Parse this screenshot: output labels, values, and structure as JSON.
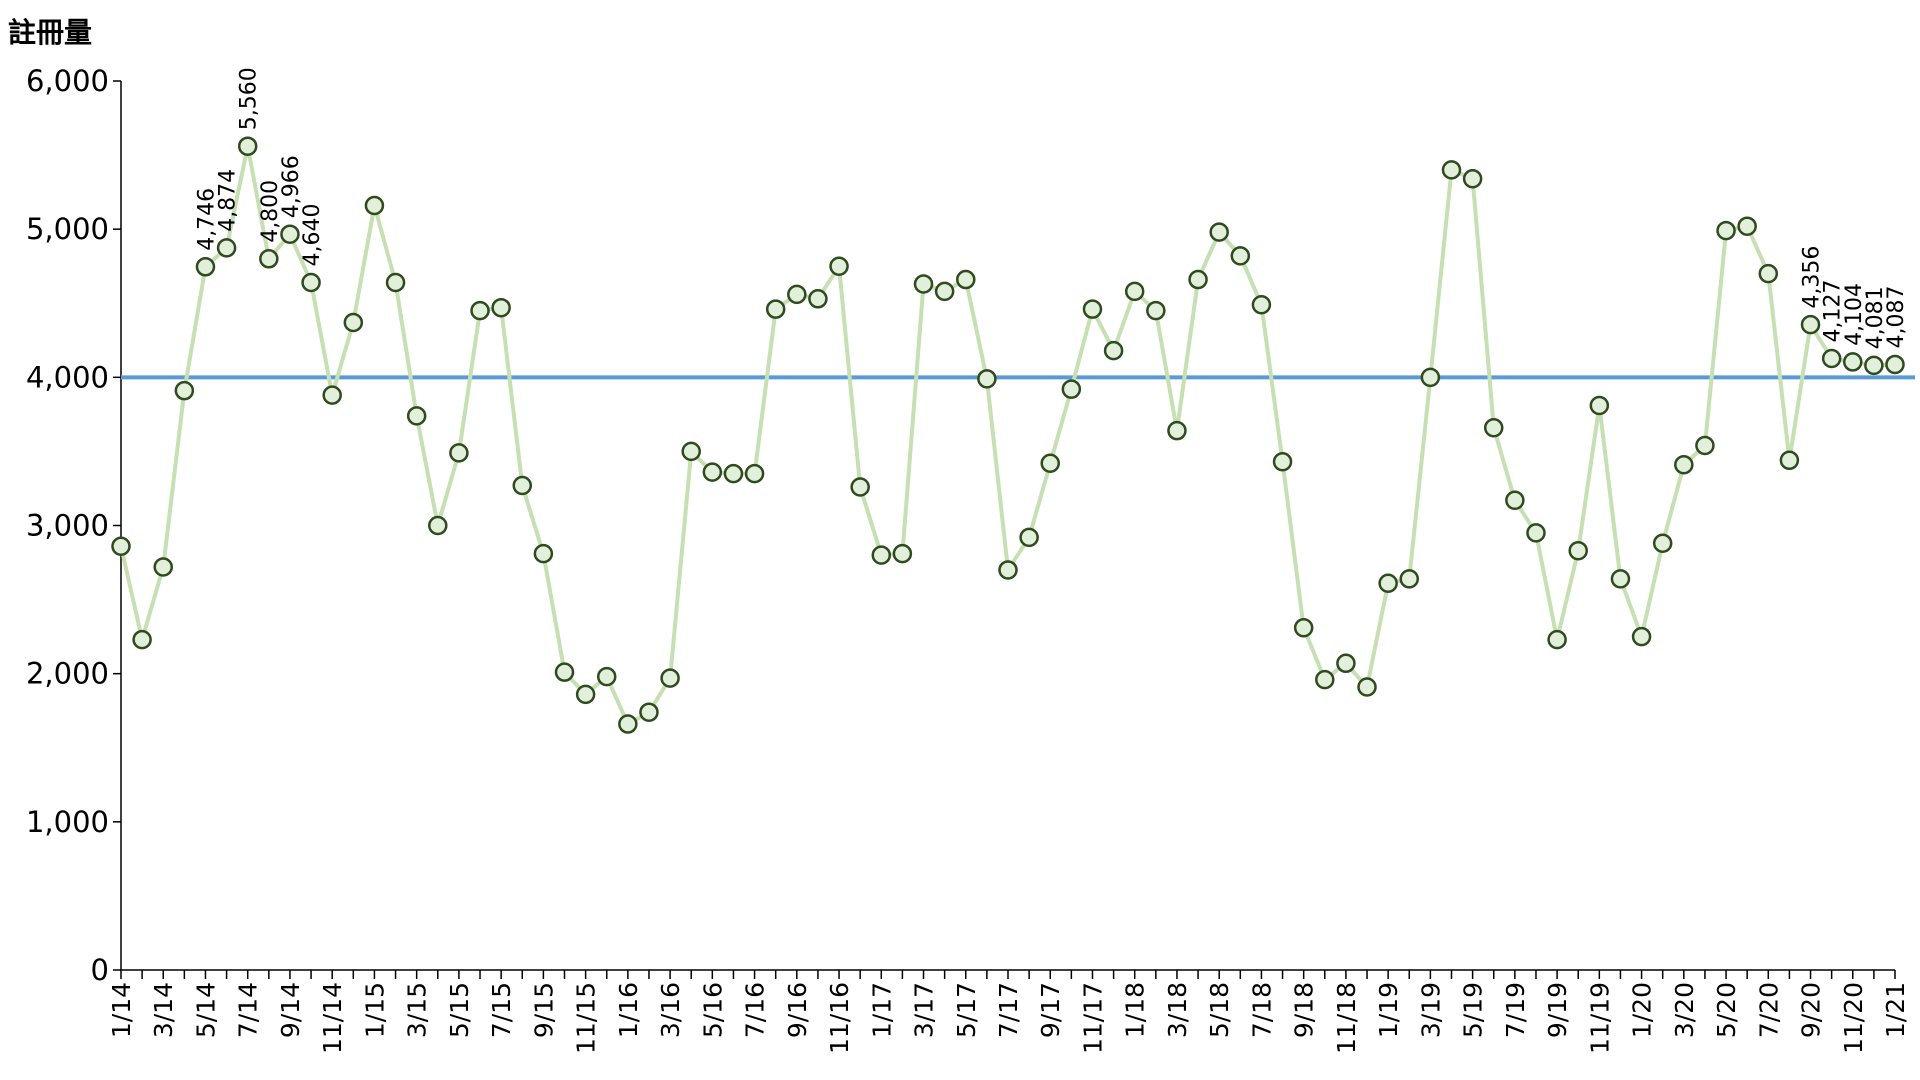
{
  "chart_data": {
    "type": "line",
    "ylabel": "註冊量",
    "ylim": [
      0,
      6000
    ],
    "yticks": [
      0,
      1000,
      2000,
      3000,
      4000,
      5000,
      6000
    ],
    "ytick_labels": [
      "0",
      "1,000",
      "2,000",
      "3,000",
      "4,000",
      "5,000",
      "6,000"
    ],
    "x": [
      "1/14",
      "2/14",
      "3/14",
      "4/14",
      "5/14",
      "6/14",
      "7/14",
      "8/14",
      "9/14",
      "10/14",
      "11/14",
      "12/14",
      "1/15",
      "2/15",
      "3/15",
      "4/15",
      "5/15",
      "6/15",
      "7/15",
      "8/15",
      "9/15",
      "10/15",
      "11/15",
      "12/15",
      "1/16",
      "2/16",
      "3/16",
      "4/16",
      "5/16",
      "6/16",
      "7/16",
      "8/16",
      "9/16",
      "10/16",
      "11/16",
      "12/16",
      "1/17",
      "2/17",
      "3/17",
      "4/17",
      "5/17",
      "6/17",
      "7/17",
      "8/17",
      "9/17",
      "10/17",
      "11/17",
      "12/17",
      "1/18",
      "2/18",
      "3/18",
      "4/18",
      "5/18",
      "6/18",
      "7/18",
      "8/18",
      "9/18",
      "10/18",
      "11/18",
      "12/18",
      "1/19",
      "2/19",
      "3/19",
      "4/19",
      "5/19",
      "6/19",
      "7/19",
      "8/19",
      "9/19",
      "10/19",
      "11/19",
      "12/19",
      "1/20",
      "2/20",
      "3/20",
      "4/20",
      "5/20",
      "6/20",
      "7/20",
      "8/20",
      "9/20",
      "10/20",
      "11/20",
      "12/20",
      "1/21"
    ],
    "x_tick_labels": [
      "1/14",
      "3/14",
      "5/14",
      "7/14",
      "9/14",
      "11/14",
      "1/15",
      "3/15",
      "5/15",
      "7/15",
      "9/15",
      "11/15",
      "1/16",
      "3/16",
      "5/16",
      "7/16",
      "9/16",
      "11/16",
      "1/17",
      "3/17",
      "5/17",
      "7/17",
      "9/17",
      "11/17",
      "1/18",
      "3/18",
      "5/18",
      "7/18",
      "9/18",
      "11/18",
      "1/19",
      "3/19",
      "5/19",
      "7/19",
      "9/19",
      "11/19",
      "1/20",
      "3/20",
      "5/20",
      "7/20",
      "9/20",
      "11/20",
      "1/21"
    ],
    "series": [
      {
        "values": [
          2860,
          2230,
          2720,
          3910,
          4746,
          4874,
          5560,
          4800,
          4966,
          4640,
          3880,
          4370,
          5160,
          4640,
          3740,
          3000,
          3490,
          4450,
          4470,
          3270,
          2810,
          2010,
          1860,
          1980,
          1660,
          1740,
          1970,
          3500,
          3360,
          3350,
          3350,
          4460,
          4560,
          4530,
          4750,
          3260,
          2800,
          2810,
          4630,
          4580,
          4660,
          3990,
          2700,
          2920,
          3420,
          3920,
          4460,
          4180,
          4580,
          4450,
          3640,
          4660,
          4980,
          4820,
          4490,
          3430,
          2310,
          1960,
          2070,
          1910,
          2610,
          2640,
          4000,
          5400,
          5340,
          3660,
          3170,
          2950,
          2230,
          2830,
          3810,
          2640,
          2250,
          2880,
          3410,
          3540,
          4990,
          5020,
          4700,
          3440,
          4356,
          4127,
          4104,
          4081,
          4087
        ]
      }
    ],
    "reference_line": 4000,
    "data_labels": [
      {
        "index": 4,
        "text": "4,746"
      },
      {
        "index": 5,
        "text": "4,874"
      },
      {
        "index": 6,
        "text": "5,560"
      },
      {
        "index": 7,
        "text": "4,800"
      },
      {
        "index": 8,
        "text": "4,966"
      },
      {
        "index": 9,
        "text": "4,640"
      },
      {
        "index": 80,
        "text": "4,356"
      },
      {
        "index": 81,
        "text": "4,127"
      },
      {
        "index": 82,
        "text": "4,104"
      },
      {
        "index": 83,
        "text": "4,081"
      },
      {
        "index": 84,
        "text": "4,087"
      }
    ],
    "grid": false,
    "colors": {
      "line": "#c6e0b4",
      "marker_fill": "#e2efda",
      "marker_edge": "#2e4a1e",
      "reference": "#5b9bd5",
      "axis": "#000000"
    }
  }
}
